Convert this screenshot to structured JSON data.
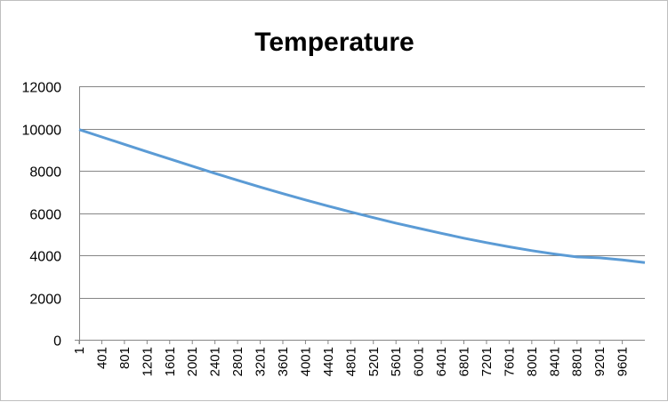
{
  "chart_data": {
    "type": "line",
    "title": "Temperature",
    "xlabel": "",
    "ylabel": "",
    "ylim": [
      0,
      12000
    ],
    "y_ticks": [
      0,
      2000,
      4000,
      6000,
      8000,
      10000,
      12000
    ],
    "x_tick_labels": [
      "1",
      "401",
      "801",
      "1201",
      "1601",
      "2001",
      "2401",
      "2801",
      "3201",
      "3601",
      "4001",
      "4401",
      "4801",
      "5201",
      "5601",
      "6001",
      "6401",
      "6801",
      "7201",
      "7601",
      "8001",
      "8401",
      "8801",
      "9201",
      "9601"
    ],
    "x_range": [
      1,
      10000
    ],
    "grid": "horizontal",
    "legend": "none",
    "colors": {
      "series": "#5b9bd5",
      "grid": "#868686",
      "axis": "#868686"
    },
    "series": [
      {
        "x": [
          1,
          401,
          801,
          1201,
          1601,
          2001,
          2401,
          2801,
          3201,
          3601,
          4001,
          4401,
          4801,
          5201,
          5601,
          6001,
          6401,
          6801,
          7201,
          7601,
          8001,
          8401,
          8801,
          9201,
          9601,
          10000
        ],
        "values": [
          9950,
          9600,
          9250,
          8900,
          8560,
          8220,
          7880,
          7550,
          7230,
          6920,
          6620,
          6330,
          6050,
          5780,
          5520,
          5280,
          5040,
          4810,
          4600,
          4400,
          4220,
          4060,
          3920,
          3880,
          3780,
          3650
        ]
      }
    ]
  }
}
